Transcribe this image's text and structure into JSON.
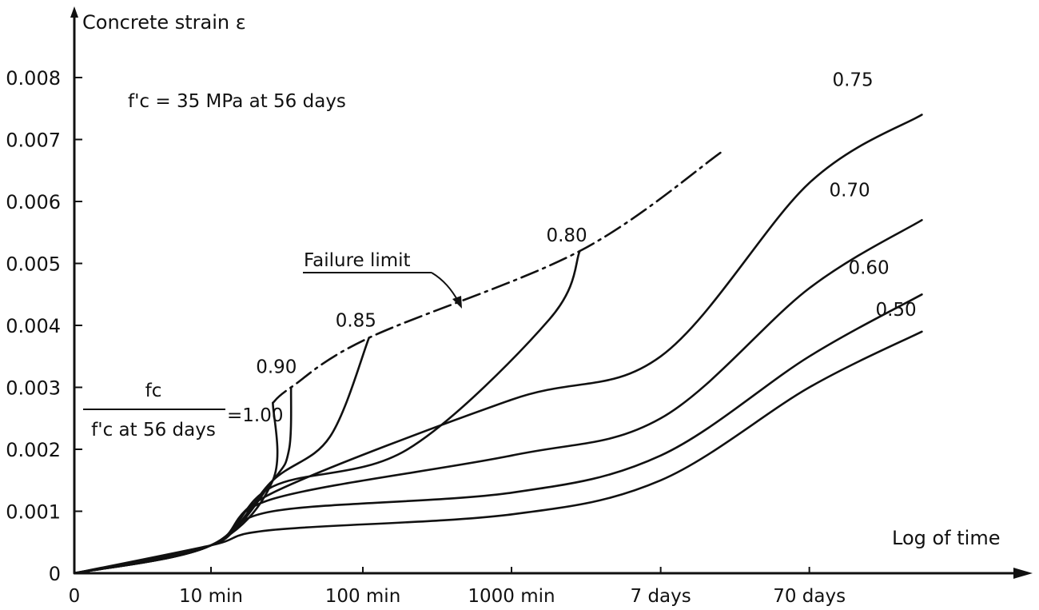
{
  "chart_data": {
    "type": "line",
    "title": "",
    "ylabel": "Concrete strain ε",
    "xlabel": "Log of time",
    "y_scale": "linear",
    "x_scale": "log",
    "ylim": [
      0,
      0.0085
    ],
    "x_ticks": [
      "0",
      "10 min",
      "100 min",
      "1000 min",
      "7 days",
      "70 days"
    ],
    "y_ticks": [
      "0",
      "0.001",
      "0.002",
      "0.003",
      "0.004",
      "0.005",
      "0.006",
      "0.007",
      "0.008"
    ],
    "grid": false,
    "annotations": {
      "strength_note": "f'c = 35 MPa at 56 days",
      "ratio_numerator": "fc",
      "ratio_denominator": "f'c at 56 days",
      "ratio_value": "=1.00",
      "failure_limit_label": "Failure limit"
    },
    "series": [
      {
        "name": "1.00",
        "points": [
          [
            "0",
            0
          ],
          [
            "10 min",
            0.00045
          ],
          [
            "25 min",
            0.0015
          ],
          [
            "25 min",
            0.00275
          ]
        ]
      },
      {
        "name": "0.90",
        "points": [
          [
            "0",
            0
          ],
          [
            "10 min",
            0.00045
          ],
          [
            "25 min",
            0.0015
          ],
          [
            "32 min",
            0.002
          ],
          [
            "33 min",
            0.003
          ]
        ]
      },
      {
        "name": "0.85",
        "points": [
          [
            "0",
            0
          ],
          [
            "10 min",
            0.00045
          ],
          [
            "25 min",
            0.0015
          ],
          [
            "60 min",
            0.0022
          ],
          [
            "110 min",
            0.0038
          ]
        ]
      },
      {
        "name": "0.80",
        "points": [
          [
            "0",
            0
          ],
          [
            "10 min",
            0.00045
          ],
          [
            "25 min",
            0.0014
          ],
          [
            "200 min",
            0.002
          ],
          [
            "1800 min",
            0.0041
          ],
          [
            "2 days",
            0.0052
          ]
        ]
      },
      {
        "name": "0.75",
        "points": [
          [
            "0",
            0
          ],
          [
            "10 min",
            0.00045
          ],
          [
            "25 min",
            0.0013
          ],
          [
            "1000 min",
            0.0028
          ],
          [
            "7 days",
            0.0035
          ],
          [
            "70 days",
            0.0063
          ],
          [
            "400 days",
            0.0074
          ]
        ]
      },
      {
        "name": "0.70",
        "points": [
          [
            "0",
            0
          ],
          [
            "10 min",
            0.00045
          ],
          [
            "25 min",
            0.0012
          ],
          [
            "1000 min",
            0.0019
          ],
          [
            "7 days",
            0.0025
          ],
          [
            "70 days",
            0.0046
          ],
          [
            "400 days",
            0.0057
          ]
        ]
      },
      {
        "name": "0.60",
        "points": [
          [
            "0",
            0
          ],
          [
            "10 min",
            0.00045
          ],
          [
            "25 min",
            0.001
          ],
          [
            "1000 min",
            0.0013
          ],
          [
            "7 days",
            0.0019
          ],
          [
            "70 days",
            0.0035
          ],
          [
            "400 days",
            0.0045
          ]
        ]
      },
      {
        "name": "0.50",
        "points": [
          [
            "0",
            0
          ],
          [
            "10 min",
            0.00045
          ],
          [
            "25 min",
            0.0007
          ],
          [
            "1000 min",
            0.00095
          ],
          [
            "7 days",
            0.0015
          ],
          [
            "70 days",
            0.003
          ],
          [
            "400 days",
            0.0039
          ]
        ]
      }
    ],
    "failure_limit": [
      [
        "25 min",
        0.00275
      ],
      [
        "33 min",
        0.003
      ],
      [
        "110 min",
        0.0038
      ],
      [
        "2 days",
        0.0052
      ],
      [
        "18 days",
        0.0068
      ]
    ]
  }
}
